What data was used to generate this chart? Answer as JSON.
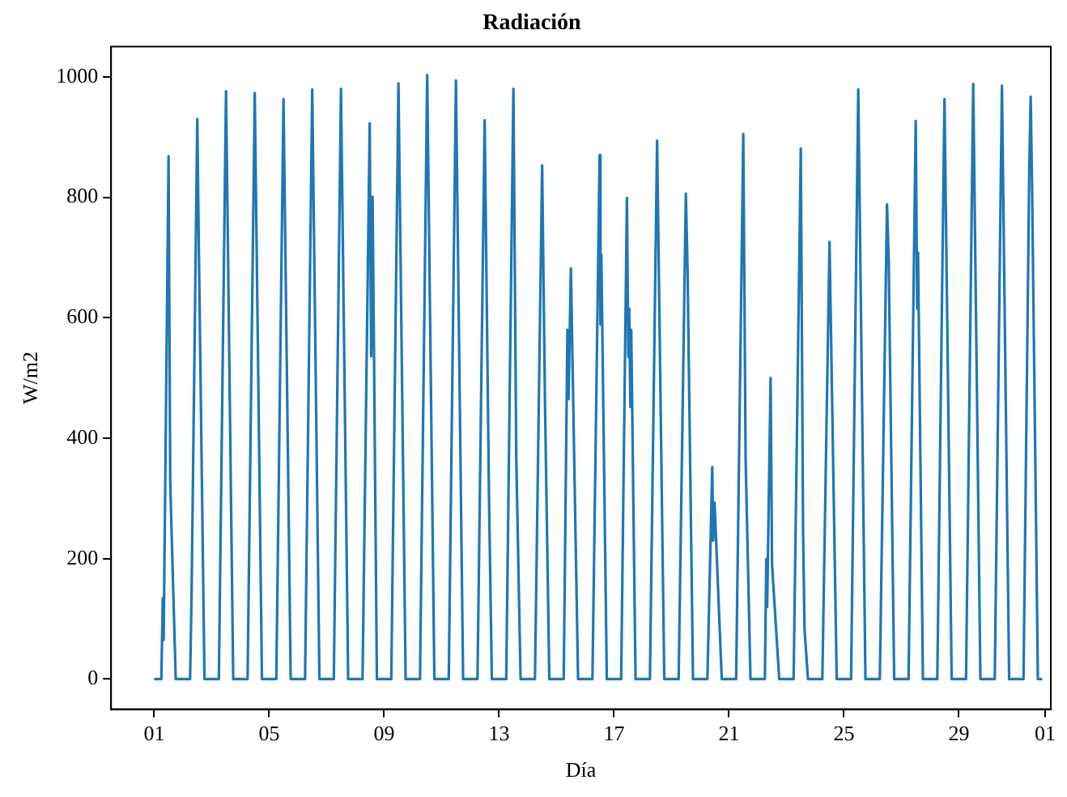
{
  "chart_data": {
    "type": "line",
    "title": "Radiación",
    "xlabel": "Día",
    "ylabel": "W/m2",
    "marker": "none",
    "grid": false,
    "xlim": [
      "--02-27T12:00",
      "--04-01T04:48"
    ],
    "ylim": [
      -50,
      1050
    ],
    "xticks": [
      {
        "value": "--03-01",
        "label": "01"
      },
      {
        "value": "--03-05",
        "label": "05"
      },
      {
        "value": "--03-09",
        "label": "09"
      },
      {
        "value": "--03-13",
        "label": "13"
      },
      {
        "value": "--03-17",
        "label": "17"
      },
      {
        "value": "--03-21",
        "label": "21"
      },
      {
        "value": "--03-25",
        "label": "25"
      },
      {
        "value": "--03-29",
        "label": "29"
      },
      {
        "value": "--04-01",
        "label": "01"
      }
    ],
    "yticks": [
      0,
      200,
      400,
      600,
      800,
      1000
    ],
    "series": [
      {
        "color": "#1f77b4",
        "x": [
          "--03-01T00:00",
          "--03-01T06:00",
          "--03-01T07:12",
          "--03-01T07:55",
          "--03-01T12:00",
          "--03-01T13:26",
          "--03-01T18:00",
          "--03-02T06:00",
          "--03-02T07:12",
          "--03-02T12:00",
          "--03-02T13:12",
          "--03-02T13:55",
          "--03-02T18:00",
          "--03-03T06:00",
          "--03-03T12:00",
          "--03-03T18:00",
          "--03-04T06:00",
          "--03-04T12:00",
          "--03-04T18:00",
          "--03-05T06:00",
          "--03-05T12:00",
          "--03-05T18:00",
          "--03-06T06:00",
          "--03-06T12:00",
          "--03-06T18:00",
          "--03-07T06:00",
          "--03-07T12:00",
          "--03-07T18:00",
          "--03-08T06:00",
          "--03-08T12:00",
          "--03-08T13:12",
          "--03-08T14:24",
          "--03-08T18:00",
          "--03-09T06:00",
          "--03-09T12:00",
          "--03-09T18:00",
          "--03-10T06:00",
          "--03-10T12:00",
          "--03-10T18:00",
          "--03-11T06:00",
          "--03-11T12:00",
          "--03-11T18:00",
          "--03-12T06:00",
          "--03-12T12:00",
          "--03-12T15:36",
          "--03-12T18:00",
          "--03-13T06:00",
          "--03-13T12:00",
          "--03-13T14:24",
          "--03-13T18:00",
          "--03-14T06:00",
          "--03-14T12:00",
          "--03-14T14:24",
          "--03-14T18:00",
          "--03-15T06:00",
          "--03-15T09:07",
          "--03-15T10:05",
          "--03-15T12:00",
          "--03-15T18:00",
          "--03-16T06:00",
          "--03-16T12:00",
          "--03-16T12:43",
          "--03-16T13:26",
          "--03-16T18:00",
          "--03-17T06:00",
          "--03-17T10:48",
          "--03-17T12:00",
          "--03-17T12:43",
          "--03-17T13:41",
          "--03-17T14:24",
          "--03-17T18:00",
          "--03-18T06:00",
          "--03-18T12:00",
          "--03-18T18:00",
          "--03-19T06:00",
          "--03-19T12:00",
          "--03-19T13:26",
          "--03-19T18:00",
          "--03-20T06:00",
          "--03-20T10:05",
          "--03-20T10:48",
          "--03-20T12:00",
          "--03-20T18:00",
          "--03-21T06:00",
          "--03-21T12:00",
          "--03-21T13:55",
          "--03-21T18:00",
          "--03-22T06:00",
          "--03-22T07:12",
          "--03-22T07:55",
          "--03-22T10:48",
          "--03-22T12:00",
          "--03-22T18:00",
          "--03-23T06:00",
          "--03-23T12:00",
          "--03-23T13:55",
          "--03-23T15:07",
          "--03-23T18:00",
          "--03-24T06:00",
          "--03-24T12:00",
          "--03-24T18:00",
          "--03-25T06:00",
          "--03-25T12:00",
          "--03-25T18:00",
          "--03-26T06:00",
          "--03-26T12:00",
          "--03-26T13:26",
          "--03-26T18:00",
          "--03-27T06:00",
          "--03-27T12:00",
          "--03-27T13:12",
          "--03-27T13:55",
          "--03-27T18:00",
          "--03-28T06:00",
          "--03-28T12:00",
          "--03-28T18:00",
          "--03-29T06:00",
          "--03-29T12:00",
          "--03-29T18:00",
          "--03-30T06:00",
          "--03-30T12:00",
          "--03-30T18:00",
          "--03-31T06:00",
          "--03-31T10:48",
          "--03-31T12:00",
          "--03-31T13:12",
          "--03-31T18:00",
          "--03-31T21:36"
        ],
        "values": [
          0,
          0,
          135,
          65,
          868,
          323,
          0,
          0,
          136,
          930,
          731,
          625,
          0,
          0,
          976,
          0,
          0,
          973,
          0,
          0,
          963,
          0,
          0,
          979,
          0,
          0,
          980,
          0,
          0,
          923,
          536,
          801,
          0,
          0,
          989,
          0,
          0,
          1003,
          0,
          0,
          994,
          0,
          0,
          928,
          305,
          0,
          0,
          980,
          367,
          0,
          0,
          853,
          456,
          0,
          0,
          580,
          465,
          682,
          0,
          0,
          870,
          589,
          705,
          0,
          0,
          799,
          535,
          615,
          452,
          580,
          0,
          0,
          894,
          0,
          0,
          806,
          682,
          0,
          0,
          352,
          230,
          293,
          0,
          0,
          905,
          367,
          0,
          0,
          199,
          120,
          500,
          190,
          0,
          0,
          881,
          243,
          83,
          0,
          0,
          726,
          0,
          0,
          979,
          0,
          0,
          788,
          695,
          0,
          0,
          927,
          615,
          708,
          0,
          0,
          963,
          0,
          0,
          988,
          0,
          0,
          985,
          0,
          0,
          846,
          967,
          810,
          0,
          0
        ]
      }
    ]
  }
}
